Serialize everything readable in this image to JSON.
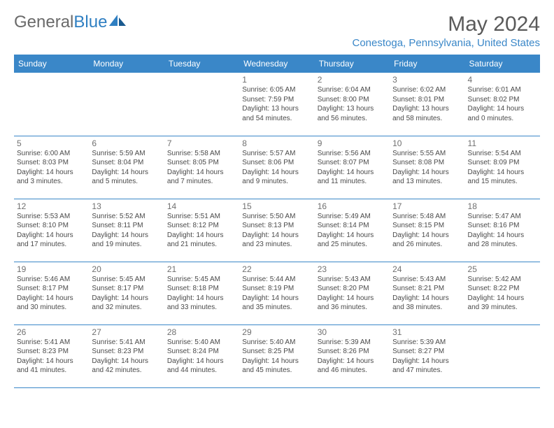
{
  "brand": {
    "part1": "General",
    "part2": "Blue"
  },
  "title": "May 2024",
  "location": "Conestoga, Pennsylvania, United States",
  "colors": {
    "header_bg": "#3a87c8",
    "accent": "#2f7fc2",
    "text": "#4a4a4a",
    "muted": "#707070"
  },
  "weekdays": [
    "Sunday",
    "Monday",
    "Tuesday",
    "Wednesday",
    "Thursday",
    "Friday",
    "Saturday"
  ],
  "weeks": [
    [
      null,
      null,
      null,
      {
        "n": "1",
        "sr": "Sunrise: 6:05 AM",
        "ss": "Sunset: 7:59 PM",
        "dl": "Daylight: 13 hours and 54 minutes."
      },
      {
        "n": "2",
        "sr": "Sunrise: 6:04 AM",
        "ss": "Sunset: 8:00 PM",
        "dl": "Daylight: 13 hours and 56 minutes."
      },
      {
        "n": "3",
        "sr": "Sunrise: 6:02 AM",
        "ss": "Sunset: 8:01 PM",
        "dl": "Daylight: 13 hours and 58 minutes."
      },
      {
        "n": "4",
        "sr": "Sunrise: 6:01 AM",
        "ss": "Sunset: 8:02 PM",
        "dl": "Daylight: 14 hours and 0 minutes."
      }
    ],
    [
      {
        "n": "5",
        "sr": "Sunrise: 6:00 AM",
        "ss": "Sunset: 8:03 PM",
        "dl": "Daylight: 14 hours and 3 minutes."
      },
      {
        "n": "6",
        "sr": "Sunrise: 5:59 AM",
        "ss": "Sunset: 8:04 PM",
        "dl": "Daylight: 14 hours and 5 minutes."
      },
      {
        "n": "7",
        "sr": "Sunrise: 5:58 AM",
        "ss": "Sunset: 8:05 PM",
        "dl": "Daylight: 14 hours and 7 minutes."
      },
      {
        "n": "8",
        "sr": "Sunrise: 5:57 AM",
        "ss": "Sunset: 8:06 PM",
        "dl": "Daylight: 14 hours and 9 minutes."
      },
      {
        "n": "9",
        "sr": "Sunrise: 5:56 AM",
        "ss": "Sunset: 8:07 PM",
        "dl": "Daylight: 14 hours and 11 minutes."
      },
      {
        "n": "10",
        "sr": "Sunrise: 5:55 AM",
        "ss": "Sunset: 8:08 PM",
        "dl": "Daylight: 14 hours and 13 minutes."
      },
      {
        "n": "11",
        "sr": "Sunrise: 5:54 AM",
        "ss": "Sunset: 8:09 PM",
        "dl": "Daylight: 14 hours and 15 minutes."
      }
    ],
    [
      {
        "n": "12",
        "sr": "Sunrise: 5:53 AM",
        "ss": "Sunset: 8:10 PM",
        "dl": "Daylight: 14 hours and 17 minutes."
      },
      {
        "n": "13",
        "sr": "Sunrise: 5:52 AM",
        "ss": "Sunset: 8:11 PM",
        "dl": "Daylight: 14 hours and 19 minutes."
      },
      {
        "n": "14",
        "sr": "Sunrise: 5:51 AM",
        "ss": "Sunset: 8:12 PM",
        "dl": "Daylight: 14 hours and 21 minutes."
      },
      {
        "n": "15",
        "sr": "Sunrise: 5:50 AM",
        "ss": "Sunset: 8:13 PM",
        "dl": "Daylight: 14 hours and 23 minutes."
      },
      {
        "n": "16",
        "sr": "Sunrise: 5:49 AM",
        "ss": "Sunset: 8:14 PM",
        "dl": "Daylight: 14 hours and 25 minutes."
      },
      {
        "n": "17",
        "sr": "Sunrise: 5:48 AM",
        "ss": "Sunset: 8:15 PM",
        "dl": "Daylight: 14 hours and 26 minutes."
      },
      {
        "n": "18",
        "sr": "Sunrise: 5:47 AM",
        "ss": "Sunset: 8:16 PM",
        "dl": "Daylight: 14 hours and 28 minutes."
      }
    ],
    [
      {
        "n": "19",
        "sr": "Sunrise: 5:46 AM",
        "ss": "Sunset: 8:17 PM",
        "dl": "Daylight: 14 hours and 30 minutes."
      },
      {
        "n": "20",
        "sr": "Sunrise: 5:45 AM",
        "ss": "Sunset: 8:17 PM",
        "dl": "Daylight: 14 hours and 32 minutes."
      },
      {
        "n": "21",
        "sr": "Sunrise: 5:45 AM",
        "ss": "Sunset: 8:18 PM",
        "dl": "Daylight: 14 hours and 33 minutes."
      },
      {
        "n": "22",
        "sr": "Sunrise: 5:44 AM",
        "ss": "Sunset: 8:19 PM",
        "dl": "Daylight: 14 hours and 35 minutes."
      },
      {
        "n": "23",
        "sr": "Sunrise: 5:43 AM",
        "ss": "Sunset: 8:20 PM",
        "dl": "Daylight: 14 hours and 36 minutes."
      },
      {
        "n": "24",
        "sr": "Sunrise: 5:43 AM",
        "ss": "Sunset: 8:21 PM",
        "dl": "Daylight: 14 hours and 38 minutes."
      },
      {
        "n": "25",
        "sr": "Sunrise: 5:42 AM",
        "ss": "Sunset: 8:22 PM",
        "dl": "Daylight: 14 hours and 39 minutes."
      }
    ],
    [
      {
        "n": "26",
        "sr": "Sunrise: 5:41 AM",
        "ss": "Sunset: 8:23 PM",
        "dl": "Daylight: 14 hours and 41 minutes."
      },
      {
        "n": "27",
        "sr": "Sunrise: 5:41 AM",
        "ss": "Sunset: 8:23 PM",
        "dl": "Daylight: 14 hours and 42 minutes."
      },
      {
        "n": "28",
        "sr": "Sunrise: 5:40 AM",
        "ss": "Sunset: 8:24 PM",
        "dl": "Daylight: 14 hours and 44 minutes."
      },
      {
        "n": "29",
        "sr": "Sunrise: 5:40 AM",
        "ss": "Sunset: 8:25 PM",
        "dl": "Daylight: 14 hours and 45 minutes."
      },
      {
        "n": "30",
        "sr": "Sunrise: 5:39 AM",
        "ss": "Sunset: 8:26 PM",
        "dl": "Daylight: 14 hours and 46 minutes."
      },
      {
        "n": "31",
        "sr": "Sunrise: 5:39 AM",
        "ss": "Sunset: 8:27 PM",
        "dl": "Daylight: 14 hours and 47 minutes."
      },
      null
    ]
  ]
}
